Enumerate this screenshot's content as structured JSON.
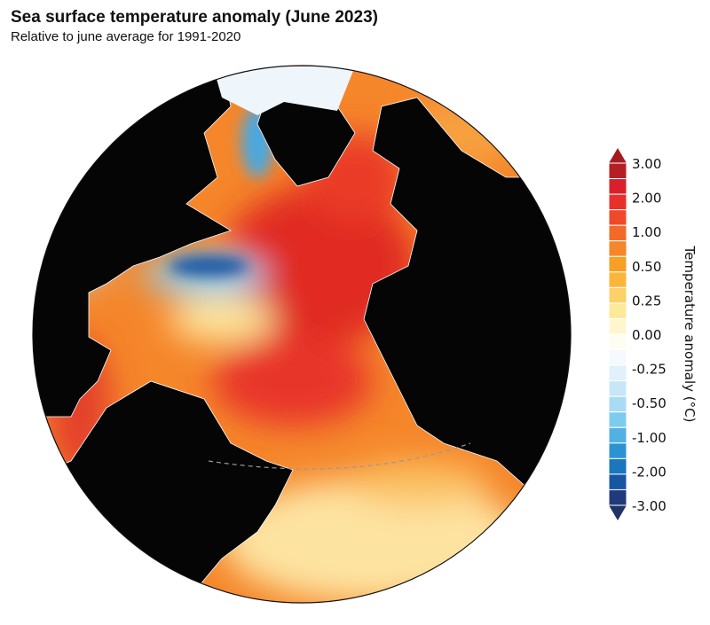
{
  "title": "Sea surface temperature anomaly (June 2023)",
  "subtitle": "Relative to june average for 1991-2020",
  "map": {
    "projection": "orthographic",
    "center": "North Atlantic",
    "land_color": "#050505",
    "ice_color": "#eef6fc",
    "equator_line": "dashed grey"
  },
  "colorbar": {
    "label": "Temperature anomaly (°C)",
    "ticks": [
      "3.00",
      "2.00",
      "1.00",
      "0.50",
      "0.25",
      "0.00",
      "-0.25",
      "-0.50",
      "-1.00",
      "-2.00",
      "-3.00"
    ],
    "colors": [
      "#b51f24",
      "#d9202a",
      "#e8302a",
      "#ee4a2a",
      "#f26a2a",
      "#f5862a",
      "#f89f24",
      "#fbb63a",
      "#fdd068",
      "#fee89a",
      "#fff6cf",
      "#fffdf3",
      "#f4faff",
      "#e0f1fc",
      "#c7e7f8",
      "#a9dbf4",
      "#7fcbef",
      "#52b1e3",
      "#2c93d2",
      "#1b76be",
      "#1756a3",
      "#213a7c"
    ],
    "over_color": "#a41c1f",
    "under_color": "#1f3366"
  }
}
